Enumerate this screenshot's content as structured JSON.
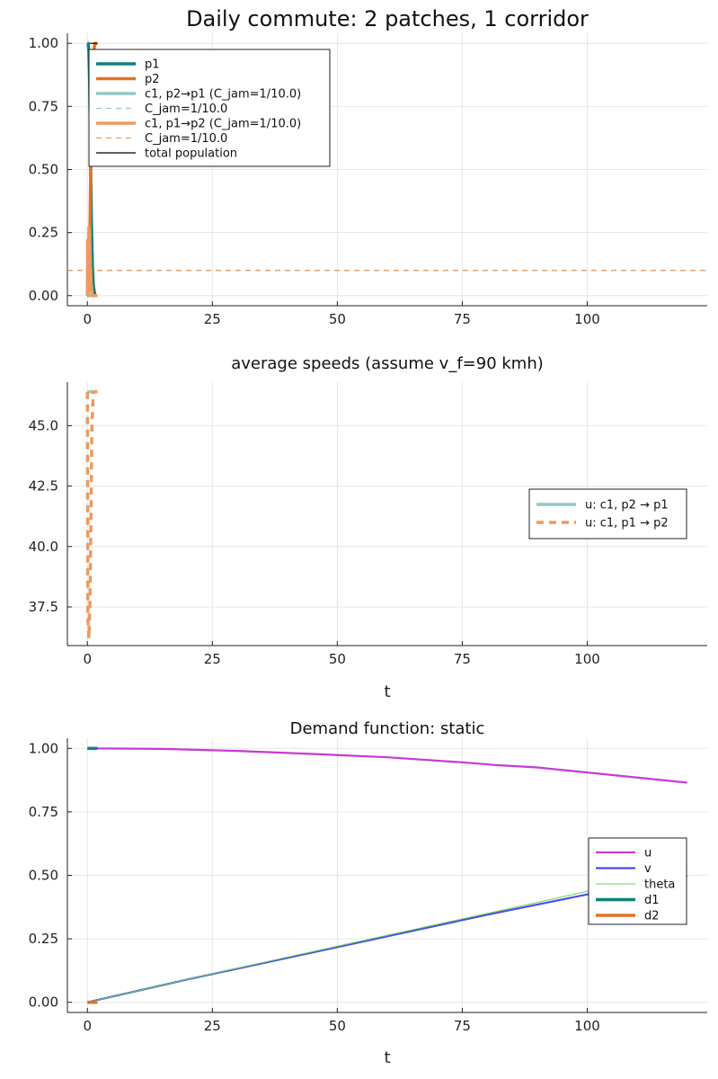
{
  "chart_data": [
    {
      "type": "line",
      "title": "Daily commute: 2 patches, 1 corridor",
      "xlabel": "",
      "ylabel": "",
      "xlim": [
        -4,
        124
      ],
      "ylim": [
        -0.04,
        1.04
      ],
      "xticks": [
        "0",
        "25",
        "50",
        "75",
        "100"
      ],
      "yticks": [
        "0.00",
        "0.25",
        "0.50",
        "0.75",
        "1.00"
      ],
      "grid": true,
      "legend_position": "top-left",
      "series": [
        {
          "name": "p1",
          "color": "#0e827b",
          "width": 3.5,
          "dash": "solid",
          "x": [
            0,
            0.15,
            0.3,
            0.45,
            0.6,
            0.8,
            1.0,
            1.2,
            1.5,
            2.0
          ],
          "y": [
            1.0,
            1.0,
            0.97,
            0.85,
            0.6,
            0.3,
            0.12,
            0.04,
            0.0,
            0.0
          ]
        },
        {
          "name": "p2",
          "color": "#e37324",
          "width": 3.5,
          "dash": "solid",
          "x": [
            0,
            0.15,
            0.3,
            0.45,
            0.6,
            0.8,
            1.0,
            1.2,
            1.5,
            2.0
          ],
          "y": [
            0.0,
            0.0,
            0.03,
            0.15,
            0.4,
            0.7,
            0.88,
            0.96,
            1.0,
            1.0
          ]
        },
        {
          "name": "c1, p2→p1 (C_jam=1/10.0)",
          "color": "#92c9c6",
          "width": 3.5,
          "dash": "solid",
          "x": [
            0,
            0.5,
            1.0,
            1.5,
            2.0
          ],
          "y": [
            0.0,
            0.0,
            0.0,
            0.0,
            0.0
          ]
        },
        {
          "name": "C_jam=1/10.0",
          "color": "#92c9c6",
          "width": 1.2,
          "dash": "6,5",
          "x": [
            -4,
            124
          ],
          "y": [
            0.1,
            0.1
          ]
        },
        {
          "name": "c1, p1→p2 (C_jam=1/10.0)",
          "color": "#ec9a62",
          "width": 3.5,
          "dash": "solid",
          "x": [
            0,
            0.05,
            0.15,
            0.3,
            0.45,
            0.6,
            0.75,
            0.9,
            1.0,
            1.2,
            1.5,
            2.0
          ],
          "y": [
            0.0,
            0.22,
            0.0,
            0.27,
            0.24,
            0.12,
            0.05,
            0.02,
            0.0,
            0.0,
            0.0,
            0.0
          ]
        },
        {
          "name": "C_jam=1/10.0",
          "color": "#ec9a62",
          "width": 1.2,
          "dash": "6,5",
          "x": [
            -4,
            124
          ],
          "y": [
            0.1,
            0.1
          ]
        },
        {
          "name": "total population",
          "color": "#000000",
          "width": 1.2,
          "dash": "solid",
          "x": [
            0.5,
            2.0
          ],
          "y": [
            1.0,
            1.0
          ]
        }
      ]
    },
    {
      "type": "line",
      "title": "average speeds (assume v_f=90 kmh)",
      "xlabel": "t",
      "ylabel": "",
      "xlim": [
        -4,
        124
      ],
      "ylim": [
        35.9,
        46.8
      ],
      "xticks": [
        "0",
        "25",
        "50",
        "75",
        "100"
      ],
      "yticks": [
        "37.5",
        "40.0",
        "42.5",
        "45.0"
      ],
      "grid": true,
      "legend_position": "right",
      "series": [
        {
          "name": "u: c1, p2 → p1",
          "color": "#92c9c6",
          "width": 3.5,
          "dash": "solid",
          "x": [
            0,
            2
          ],
          "y": [
            46.4,
            46.4
          ]
        },
        {
          "name": "u: c1, p1 → p2",
          "color": "#ec9a62",
          "width": 3.5,
          "dash": "8,6",
          "x": [
            0,
            0.1,
            0.3,
            0.5,
            0.7,
            0.9,
            1.2,
            2.0
          ],
          "y": [
            46.4,
            37.0,
            36.2,
            37.5,
            41.0,
            45.0,
            46.4,
            46.4
          ]
        }
      ]
    },
    {
      "type": "line",
      "title": "Demand function: static",
      "xlabel": "t",
      "ylabel": "",
      "xlim": [
        -4,
        124
      ],
      "ylim": [
        -0.04,
        1.04
      ],
      "xticks": [
        "0",
        "25",
        "50",
        "75",
        "100"
      ],
      "yticks": [
        "0.00",
        "0.25",
        "0.50",
        "0.75",
        "1.00"
      ],
      "grid": true,
      "legend_position": "right",
      "series": [
        {
          "name": "u",
          "color": "#c73ad4",
          "width": 2.2,
          "dash": "solid",
          "x": [
            0,
            15,
            30,
            45,
            60,
            75,
            80,
            81,
            90,
            100,
            110,
            120
          ],
          "y": [
            1.0,
            0.998,
            0.99,
            0.978,
            0.965,
            0.945,
            0.937,
            0.935,
            0.925,
            0.905,
            0.885,
            0.865
          ]
        },
        {
          "name": "v",
          "color": "#4a4ee6",
          "width": 2.2,
          "dash": "solid",
          "x": [
            0,
            20,
            40,
            60,
            80,
            100,
            120
          ],
          "y": [
            0.0,
            0.09,
            0.175,
            0.26,
            0.345,
            0.425,
            0.5
          ]
        },
        {
          "name": "theta",
          "color": "#67d15a",
          "width": 1.0,
          "dash": "solid",
          "x": [
            0,
            20,
            40,
            60,
            80,
            100,
            120
          ],
          "y": [
            0.0,
            0.09,
            0.178,
            0.264,
            0.35,
            0.437,
            0.523
          ]
        },
        {
          "name": "d1",
          "color": "#0e827b",
          "width": 3.5,
          "dash": "solid",
          "x": [
            0,
            2
          ],
          "y": [
            1.0,
            1.0
          ]
        },
        {
          "name": "d2",
          "color": "#e37324",
          "width": 3.5,
          "dash": "solid",
          "x": [
            0,
            2
          ],
          "y": [
            0.0,
            0.0
          ]
        }
      ]
    }
  ]
}
